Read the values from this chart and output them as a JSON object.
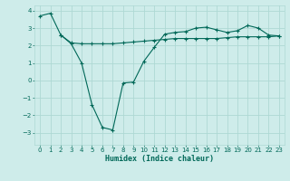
{
  "title": "",
  "xlabel": "Humidex (Indice chaleur)",
  "ylabel": "",
  "background_color": "#ceecea",
  "grid_color": "#aed8d4",
  "line_color": "#006858",
  "xlim": [
    -0.5,
    23.5
  ],
  "ylim": [
    -3.7,
    4.3
  ],
  "yticks": [
    -3,
    -2,
    -1,
    0,
    1,
    2,
    3,
    4
  ],
  "xticks": [
    0,
    1,
    2,
    3,
    4,
    5,
    6,
    7,
    8,
    9,
    10,
    11,
    12,
    13,
    14,
    15,
    16,
    17,
    18,
    19,
    20,
    21,
    22,
    23
  ],
  "series1_x": [
    0,
    1,
    2,
    3,
    4,
    5,
    6,
    7,
    8,
    9,
    10,
    11,
    12,
    13,
    14,
    15,
    16,
    17,
    18,
    19,
    20,
    21,
    22,
    23
  ],
  "series1_y": [
    3.7,
    3.85,
    2.6,
    2.1,
    1.0,
    -1.4,
    -2.7,
    -2.85,
    -0.15,
    -0.1,
    1.1,
    1.9,
    2.65,
    2.75,
    2.8,
    3.0,
    3.05,
    2.9,
    2.75,
    2.85,
    3.15,
    3.0,
    2.6,
    2.55
  ],
  "series2_x": [
    2,
    3,
    4,
    5,
    6,
    7,
    8,
    9,
    10,
    11,
    12,
    13,
    14,
    15,
    16,
    17,
    18,
    19,
    20,
    21,
    22,
    23
  ],
  "series2_y": [
    2.6,
    2.15,
    2.1,
    2.1,
    2.1,
    2.1,
    2.15,
    2.2,
    2.25,
    2.3,
    2.35,
    2.4,
    2.4,
    2.4,
    2.4,
    2.4,
    2.45,
    2.5,
    2.5,
    2.5,
    2.5,
    2.55
  ]
}
